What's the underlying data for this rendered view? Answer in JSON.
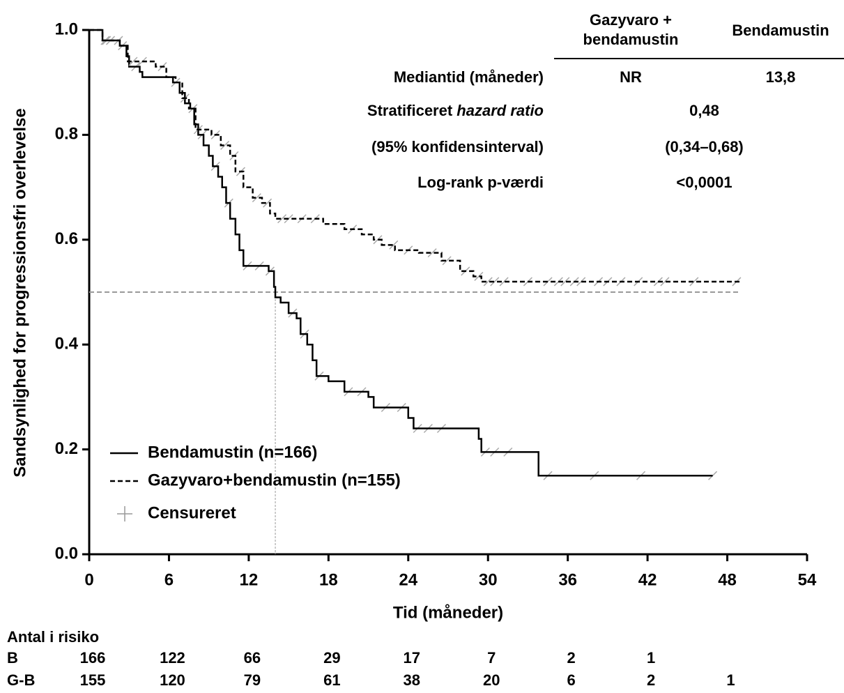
{
  "chart_data": {
    "type": "km",
    "y_label": "Sandsynlighed for progressionsfri overlevelse",
    "x_label": "Tid (måneder)",
    "xlim": [
      0,
      54
    ],
    "xticks": [
      0,
      6,
      12,
      18,
      24,
      30,
      36,
      42,
      48,
      54
    ],
    "ylim": [
      0,
      1
    ],
    "yticks": [
      {
        "value": 0,
        "label": "0.0"
      },
      0.2,
      0.4,
      0.6,
      0.8,
      {
        "value": 1,
        "label": "1.0"
      }
    ],
    "series": [
      {
        "name": "Bendamustin (n=166)",
        "color": "#000000",
        "line_style": "solid",
        "x": [
          0,
          1,
          2.3,
          2.8,
          3,
          3.8,
          4,
          6.3,
          6.8,
          7.2,
          7.6,
          7.9,
          8.2,
          8.6,
          9,
          9.3,
          9.7,
          10,
          10.3,
          10.6,
          11,
          11.3,
          11.6,
          13.5,
          13.9,
          14,
          14.4,
          15,
          15.6,
          15.9,
          16.4,
          16.8,
          17.1,
          18,
          19.2,
          21,
          21.4,
          24,
          24.4,
          29.3,
          29.5,
          33.8,
          46.9
        ],
        "values": [
          1.0,
          0.98,
          0.97,
          0.95,
          0.93,
          0.92,
          0.91,
          0.9,
          0.88,
          0.86,
          0.85,
          0.82,
          0.8,
          0.78,
          0.76,
          0.74,
          0.72,
          0.7,
          0.67,
          0.64,
          0.61,
          0.58,
          0.55,
          0.54,
          0.51,
          0.49,
          0.48,
          0.46,
          0.45,
          0.42,
          0.4,
          0.37,
          0.34,
          0.33,
          0.31,
          0.3,
          0.28,
          0.26,
          0.24,
          0.22,
          0.195,
          0.15,
          0.15
        ],
        "censored_x": [
          1.3,
          2.5,
          3.5,
          6.5,
          7.8,
          8.5,
          9.5,
          10.5,
          11.9,
          12.8,
          13.6,
          15.3,
          16.2,
          17.3,
          19.5,
          20.5,
          22.3,
          23.5,
          24.7,
          25.5,
          26.5,
          29.8,
          30.5,
          31.5,
          34.5,
          38,
          41.5,
          46.9
        ]
      },
      {
        "name": "Gazyvaro+bendamustin (n=155)",
        "color": "#000000",
        "line_style": "dashed",
        "x": [
          0,
          1,
          2.3,
          2.9,
          5,
          5.8,
          6.5,
          7,
          7.5,
          8,
          9.2,
          9.9,
          10.6,
          11,
          11.6,
          12.3,
          13,
          13.6,
          14,
          17.6,
          19.2,
          20.5,
          21.4,
          22,
          23,
          24.8,
          26.5,
          27.9,
          28.9,
          29.5,
          49
        ],
        "values": [
          1.0,
          0.98,
          0.97,
          0.94,
          0.93,
          0.91,
          0.9,
          0.87,
          0.85,
          0.81,
          0.8,
          0.78,
          0.76,
          0.73,
          0.7,
          0.68,
          0.67,
          0.65,
          0.64,
          0.63,
          0.62,
          0.61,
          0.6,
          0.59,
          0.58,
          0.575,
          0.56,
          0.54,
          0.53,
          0.52,
          0.52
        ],
        "censored_x": [
          1.2,
          1.6,
          2.2,
          3.3,
          4,
          5.5,
          7.2,
          8.2,
          9.5,
          10.2,
          10.9,
          11.4,
          12.6,
          13.4,
          14.5,
          15,
          16,
          17,
          19.8,
          21.7,
          22.9,
          24,
          25.8,
          26.9,
          28.3,
          29.3,
          30,
          30.5,
          31.2,
          33,
          34.5,
          35.3,
          35.8,
          36.5,
          37,
          38.3,
          39,
          40,
          41.3,
          42.8,
          43.3,
          45.5,
          48.7
        ]
      }
    ],
    "censored_label": "Censureret",
    "median_reference": {
      "y": 0.5,
      "x_end": 49,
      "median_x": 14
    },
    "stats_table": {
      "columns": [
        [
          "Gazyvaro +",
          "bendamustin"
        ],
        [
          "Bendamustin"
        ]
      ],
      "rows": [
        {
          "label": [
            "Mediantid (måneder)"
          ],
          "values": [
            "NR",
            "13,8"
          ]
        },
        {
          "label": [
            "Stratificeret",
            "hazard ratio"
          ],
          "values": [
            "0,48"
          ]
        },
        {
          "label": [
            "(95% konfidensinterval)"
          ],
          "values": [
            "(0,34–0,68)"
          ]
        },
        {
          "label": [
            "Log-rank p-værdi"
          ],
          "values": [
            "<0,0001"
          ]
        }
      ]
    },
    "risk_table": {
      "title": "Antal i risiko",
      "rows": [
        {
          "label": "B",
          "values": [
            166,
            122,
            66,
            29,
            17,
            7,
            2,
            1
          ]
        },
        {
          "label": "G-B",
          "values": [
            155,
            120,
            79,
            61,
            38,
            20,
            6,
            2,
            1
          ]
        }
      ]
    }
  }
}
